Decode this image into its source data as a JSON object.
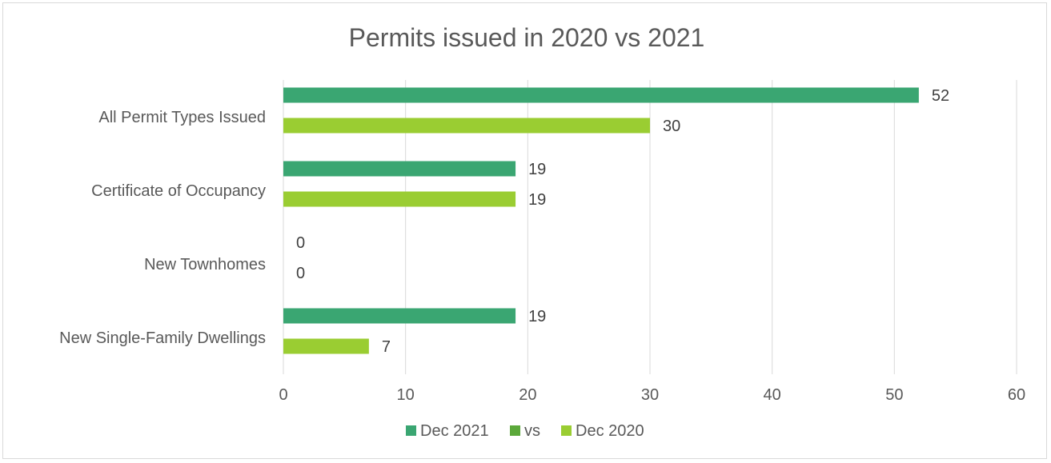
{
  "chart_data": {
    "type": "bar",
    "orientation": "horizontal",
    "title": "Permits issued in 2020 vs 2021",
    "categories": [
      "All Permit Types Issued",
      "Certificate of Occupancy",
      "New Townhomes",
      "New Single-Family Dwellings"
    ],
    "series": [
      {
        "name": "Dec 2021",
        "color": "#3aa672",
        "values": [
          52,
          19,
          0,
          19
        ]
      },
      {
        "name": "Dec 2020",
        "color": "#9acd32",
        "values": [
          30,
          19,
          0,
          7
        ]
      }
    ],
    "legend": [
      {
        "name": "Dec 2021",
        "color": "#3aa672"
      },
      {
        "name": "vs",
        "color": "#5ba83a"
      },
      {
        "name": "Dec 2020",
        "color": "#9acd32"
      }
    ],
    "xlim": [
      0,
      60
    ],
    "xticks": [
      0,
      10,
      20,
      30,
      40,
      50,
      60
    ],
    "xlabel": "",
    "ylabel": "",
    "grid": "vertical",
    "legend_position": "bottom",
    "data_labels": true
  }
}
